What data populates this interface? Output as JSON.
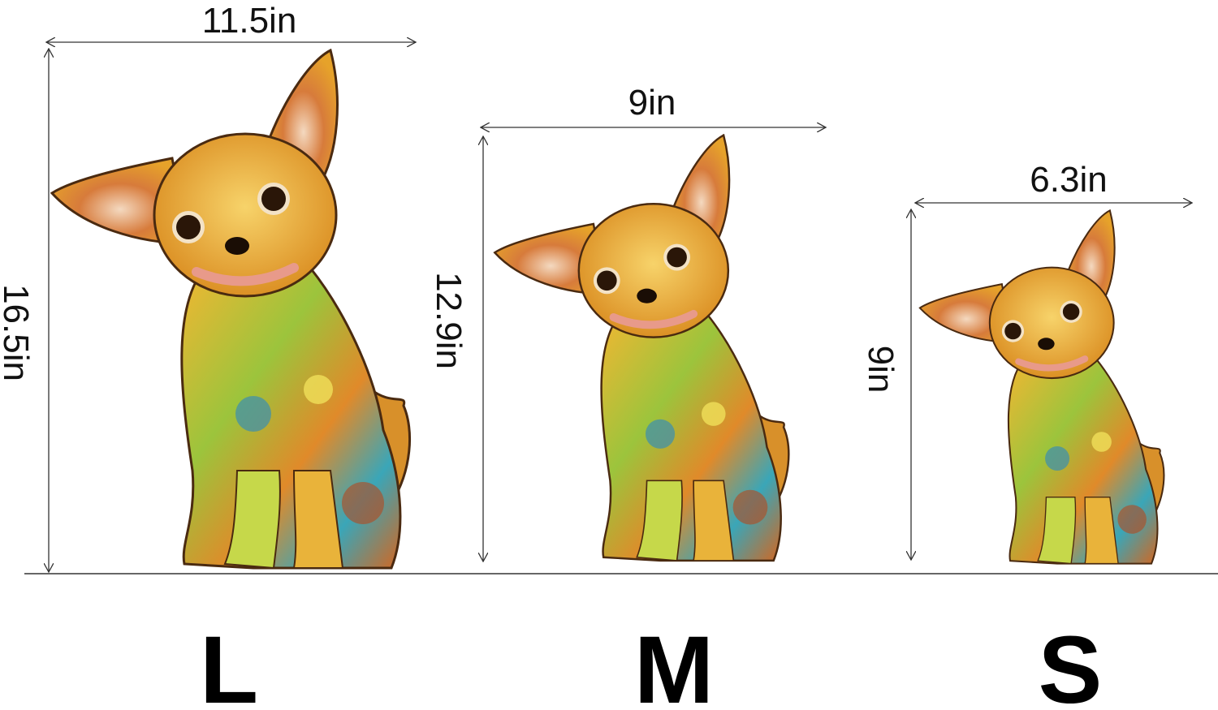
{
  "sizes": [
    {
      "label": "L",
      "width": "11.5in",
      "height": "16.5in"
    },
    {
      "label": "M",
      "width": "9in",
      "height": "12.9in"
    },
    {
      "label": "S",
      "width": "6.3in",
      "height": "9in"
    }
  ]
}
